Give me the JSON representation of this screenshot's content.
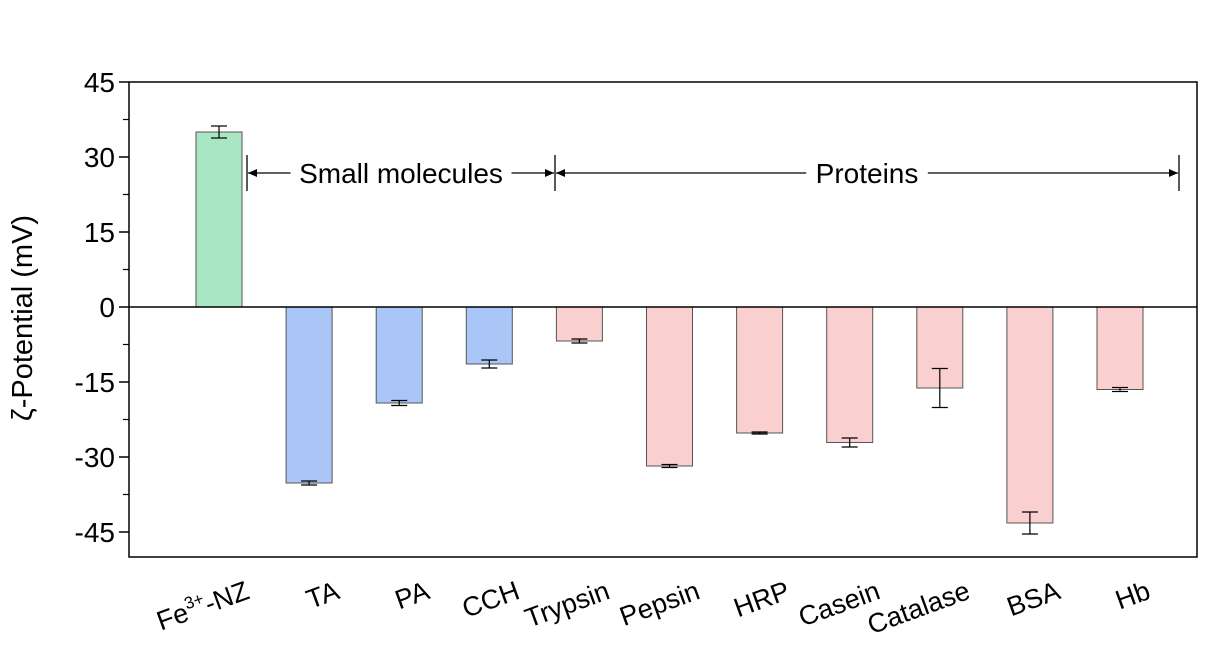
{
  "chart_data": {
    "type": "bar",
    "title": "",
    "xlabel": "",
    "ylabel": "ζ-Potential (mV)",
    "ylim": [
      -50,
      45
    ],
    "yticks": [
      45,
      30,
      15,
      0,
      -15,
      -30,
      -45
    ],
    "grid": false,
    "categories": [
      "Fe3+-NZ",
      "TA",
      "PA",
      "CCH",
      "Trypsin",
      "Pepsin",
      "HRP",
      "Casein",
      "Catalase",
      "BSA",
      "Hb"
    ],
    "category_display": [
      {
        "base": "Fe",
        "sup": "3+",
        "rest": "-NZ"
      },
      {
        "base": "TA",
        "sup": "",
        "rest": ""
      },
      {
        "base": "PA",
        "sup": "",
        "rest": ""
      },
      {
        "base": "CCH",
        "sup": "",
        "rest": ""
      },
      {
        "base": "Trypsin",
        "sup": "",
        "rest": ""
      },
      {
        "base": "Pepsin",
        "sup": "",
        "rest": ""
      },
      {
        "base": "HRP",
        "sup": "",
        "rest": ""
      },
      {
        "base": "Casein",
        "sup": "",
        "rest": ""
      },
      {
        "base": "Catalase",
        "sup": "",
        "rest": ""
      },
      {
        "base": "BSA",
        "sup": "",
        "rest": ""
      },
      {
        "base": "Hb",
        "sup": "",
        "rest": ""
      }
    ],
    "values": [
      35,
      -35.2,
      -19.2,
      -11.4,
      -6.8,
      -31.8,
      -25.2,
      -27.1,
      -16.2,
      -43.2,
      -16.5
    ],
    "errors": [
      1.2,
      0.4,
      0.5,
      0.8,
      0.4,
      0.3,
      0.2,
      0.9,
      3.9,
      2.2,
      0.4
    ],
    "group_index": [
      0,
      1,
      1,
      1,
      2,
      2,
      2,
      2,
      2,
      2,
      2
    ],
    "colors": {
      "groups": [
        "#a8e6c4",
        "#a9c6f7",
        "#f9cfcf"
      ],
      "bar_edge": "#555555",
      "axis": "#000000"
    },
    "annotations": [
      {
        "text": "Small molecules",
        "from_index": 0,
        "to_index": 3,
        "y": 28
      },
      {
        "text": "Proteins",
        "from_index": 3,
        "to_index": 10,
        "y": 28
      }
    ]
  }
}
